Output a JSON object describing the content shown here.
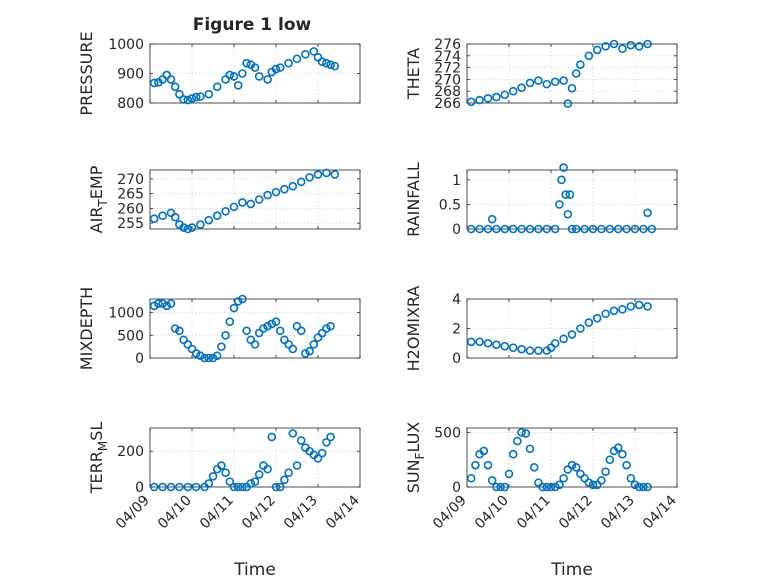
{
  "figure": {
    "title": "Figure 1 low",
    "series_color": "#0072BD"
  },
  "chart_data": [
    {
      "type": "scatter",
      "marker": "circle",
      "ylabel": "PRESSURE",
      "xlim": [
        0,
        5
      ],
      "ylim": [
        800,
        1000
      ],
      "yticks": [
        800,
        900,
        1000
      ],
      "grid": true,
      "x": [
        0.1,
        0.2,
        0.3,
        0.4,
        0.5,
        0.6,
        0.7,
        0.8,
        0.9,
        1.0,
        1.1,
        1.2,
        1.4,
        1.6,
        1.8,
        1.9,
        2.0,
        2.1,
        2.2,
        2.3,
        2.4,
        2.5,
        2.6,
        2.8,
        2.9,
        3.0,
        3.1,
        3.3,
        3.5,
        3.7,
        3.9,
        4.0,
        4.1,
        4.2,
        4.3,
        4.4
      ],
      "y": [
        868,
        870,
        880,
        895,
        880,
        855,
        830,
        812,
        810,
        815,
        820,
        822,
        830,
        855,
        880,
        895,
        890,
        860,
        900,
        935,
        930,
        920,
        890,
        880,
        905,
        915,
        920,
        935,
        950,
        965,
        975,
        955,
        940,
        935,
        930,
        925
      ]
    },
    {
      "type": "scatter",
      "marker": "circle",
      "ylabel": "THETA",
      "xlim": [
        0,
        5
      ],
      "ylim": [
        266,
        276
      ],
      "yticks": [
        266,
        268,
        270,
        272,
        274,
        276
      ],
      "grid": true,
      "x": [
        0.1,
        0.3,
        0.5,
        0.7,
        0.9,
        1.1,
        1.3,
        1.5,
        1.7,
        1.9,
        2.1,
        2.3,
        2.4,
        2.5,
        2.6,
        2.7,
        2.9,
        3.1,
        3.3,
        3.5,
        3.7,
        3.9,
        4.1,
        4.3
      ],
      "y": [
        266.2,
        266.5,
        266.8,
        267.0,
        267.4,
        268.0,
        268.6,
        269.4,
        269.8,
        269.2,
        269.6,
        269.8,
        265.9,
        268.5,
        271.0,
        272.5,
        274.0,
        275.0,
        275.6,
        276.0,
        275.2,
        275.8,
        275.6,
        276.0
      ]
    },
    {
      "type": "scatter",
      "marker": "circle",
      "ylabel": "AIR_TEMP",
      "xlim": [
        0,
        5
      ],
      "ylim": [
        253,
        273
      ],
      "yticks": [
        255,
        260,
        265,
        270
      ],
      "grid": true,
      "x": [
        0.1,
        0.3,
        0.5,
        0.6,
        0.7,
        0.8,
        0.9,
        1.0,
        1.2,
        1.4,
        1.6,
        1.8,
        2.0,
        2.2,
        2.4,
        2.6,
        2.8,
        3.0,
        3.2,
        3.4,
        3.6,
        3.8,
        4.0,
        4.2,
        4.4
      ],
      "y": [
        256.5,
        257.5,
        258.5,
        257.0,
        254.5,
        253.5,
        253.0,
        253.5,
        254.5,
        256.0,
        257.5,
        259.0,
        260.5,
        262.0,
        261.5,
        263.0,
        264.5,
        265.5,
        266.5,
        267.5,
        269.0,
        270.5,
        271.5,
        272.0,
        271.5
      ]
    },
    {
      "type": "scatter",
      "marker": "circle",
      "ylabel": "RAINFALL",
      "xlim": [
        0,
        5
      ],
      "ylim": [
        0,
        1.2
      ],
      "yticks": [
        0,
        0.5,
        1
      ],
      "grid": true,
      "x": [
        0.1,
        0.3,
        0.5,
        0.7,
        0.9,
        1.1,
        1.3,
        1.5,
        1.7,
        1.9,
        2.1,
        2.2,
        2.25,
        2.3,
        2.35,
        2.4,
        2.45,
        2.5,
        2.6,
        2.8,
        3.0,
        3.2,
        3.4,
        3.6,
        3.8,
        4.0,
        4.2,
        4.4,
        0.6,
        4.3
      ],
      "y": [
        0,
        0,
        0,
        0,
        0,
        0,
        0,
        0,
        0,
        0,
        0,
        0.5,
        1.0,
        1.25,
        0.7,
        0.3,
        0.7,
        0,
        0,
        0,
        0,
        0,
        0,
        0,
        0,
        0,
        0,
        0,
        0.2,
        0.33
      ]
    },
    {
      "type": "scatter",
      "marker": "circle",
      "ylabel": "MIXDEPTH",
      "xlim": [
        0,
        5
      ],
      "ylim": [
        0,
        1300
      ],
      "yticks": [
        0,
        500,
        1000
      ],
      "grid": true,
      "x": [
        0.1,
        0.2,
        0.3,
        0.4,
        0.5,
        0.6,
        0.7,
        0.8,
        0.9,
        1.0,
        1.1,
        1.2,
        1.3,
        1.4,
        1.5,
        1.6,
        1.7,
        1.8,
        1.9,
        2.0,
        2.1,
        2.2,
        2.3,
        2.4,
        2.5,
        2.6,
        2.7,
        2.8,
        2.9,
        3.0,
        3.1,
        3.2,
        3.3,
        3.4,
        3.5,
        3.6,
        3.7,
        3.8,
        3.9,
        4.0,
        4.1,
        4.2,
        4.3
      ],
      "y": [
        1150,
        1200,
        1200,
        1150,
        1200,
        650,
        600,
        400,
        300,
        200,
        100,
        50,
        0,
        0,
        0,
        50,
        250,
        500,
        800,
        1100,
        1250,
        1300,
        600,
        400,
        300,
        550,
        650,
        700,
        750,
        800,
        600,
        400,
        300,
        200,
        700,
        600,
        100,
        150,
        300,
        450,
        550,
        650,
        700
      ]
    },
    {
      "type": "scatter",
      "marker": "circle",
      "ylabel": "H2OMIXRA",
      "xlim": [
        0,
        5
      ],
      "ylim": [
        0,
        4
      ],
      "yticks": [
        0,
        2,
        4
      ],
      "grid": true,
      "x": [
        0.1,
        0.3,
        0.5,
        0.7,
        0.9,
        1.1,
        1.3,
        1.5,
        1.7,
        1.9,
        2.0,
        2.1,
        2.3,
        2.5,
        2.7,
        2.9,
        3.1,
        3.3,
        3.5,
        3.7,
        3.9,
        4.1,
        4.3
      ],
      "y": [
        1.1,
        1.1,
        1.0,
        0.9,
        0.8,
        0.7,
        0.6,
        0.5,
        0.5,
        0.5,
        0.7,
        1.0,
        1.3,
        1.6,
        2.0,
        2.4,
        2.7,
        3.0,
        3.2,
        3.3,
        3.5,
        3.6,
        3.5
      ]
    },
    {
      "type": "scatter",
      "marker": "circle",
      "ylabel": "TERR_MSL",
      "xlim": [
        0,
        5
      ],
      "ylim": [
        0,
        330
      ],
      "yticks": [
        0,
        200
      ],
      "grid": true,
      "x": [
        0.1,
        0.3,
        0.5,
        0.7,
        0.9,
        1.1,
        1.3,
        1.4,
        1.5,
        1.6,
        1.7,
        1.8,
        1.9,
        2.0,
        2.1,
        2.2,
        2.3,
        2.4,
        2.5,
        2.6,
        2.7,
        2.8,
        2.9,
        3.0,
        3.1,
        3.2,
        3.3,
        3.4,
        3.5,
        3.6,
        3.7,
        3.8,
        3.9,
        4.0,
        4.1,
        4.2,
        4.3
      ],
      "y": [
        0,
        0,
        0,
        0,
        0,
        0,
        0,
        20,
        60,
        100,
        120,
        80,
        30,
        0,
        0,
        0,
        0,
        20,
        30,
        70,
        120,
        100,
        280,
        0,
        0,
        40,
        80,
        300,
        120,
        260,
        220,
        200,
        180,
        160,
        190,
        250,
        280
      ]
    },
    {
      "type": "scatter",
      "marker": "circle",
      "ylabel": "SUN_FLUX",
      "xlim": [
        0,
        5
      ],
      "ylim": [
        0,
        540
      ],
      "yticks": [
        0,
        500
      ],
      "grid": true,
      "x": [
        0.1,
        0.2,
        0.3,
        0.4,
        0.5,
        0.6,
        0.7,
        0.8,
        0.9,
        1.0,
        1.1,
        1.2,
        1.3,
        1.4,
        1.5,
        1.6,
        1.7,
        1.8,
        1.9,
        2.0,
        2.1,
        2.2,
        2.3,
        2.4,
        2.5,
        2.6,
        2.7,
        2.8,
        2.9,
        3.0,
        3.1,
        3.2,
        3.3,
        3.4,
        3.5,
        3.6,
        3.7,
        3.8,
        3.9,
        4.0,
        4.1,
        4.2,
        4.3
      ],
      "y": [
        80,
        200,
        300,
        330,
        200,
        60,
        0,
        0,
        0,
        120,
        300,
        420,
        500,
        490,
        350,
        180,
        40,
        0,
        0,
        0,
        0,
        20,
        80,
        160,
        200,
        180,
        120,
        80,
        40,
        20,
        20,
        60,
        140,
        250,
        330,
        360,
        300,
        200,
        80,
        20,
        0,
        0,
        0
      ]
    }
  ],
  "xaxis": {
    "ticklabels": [
      "04/09",
      "04/10",
      "04/11",
      "04/12",
      "04/13",
      "04/14"
    ],
    "label": "Time"
  }
}
